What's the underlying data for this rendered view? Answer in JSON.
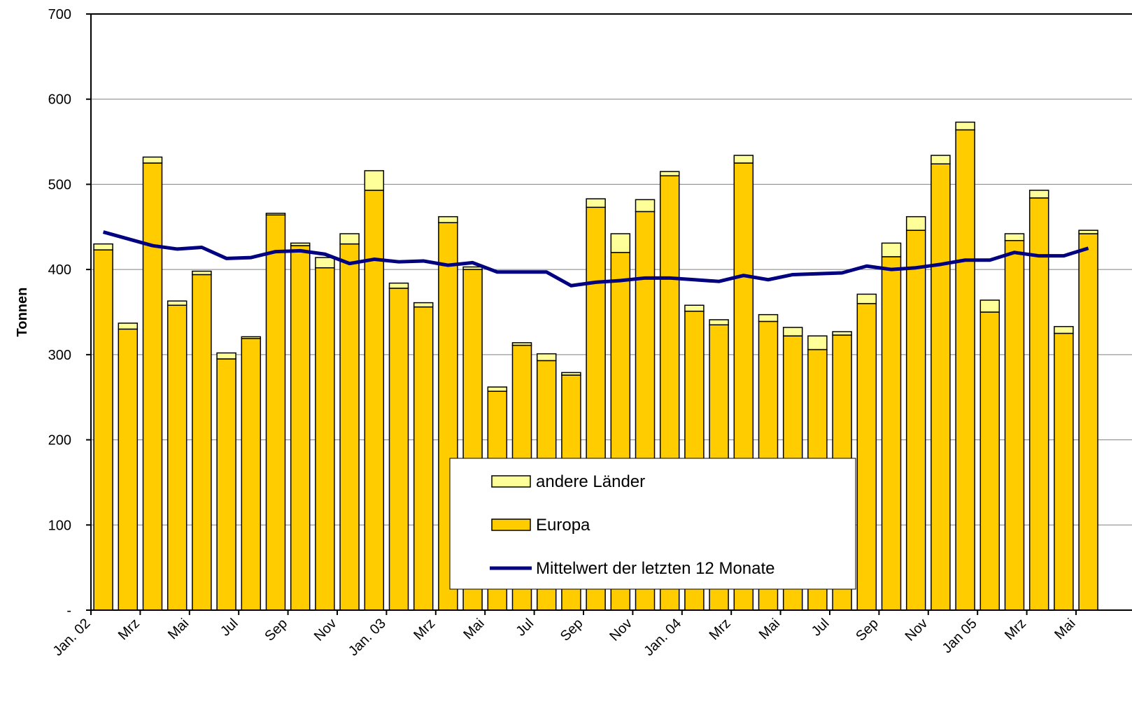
{
  "chart_data": {
    "type": "bar",
    "stacked": true,
    "y_label": "Tonnen",
    "categories": [
      "Jan. 02",
      null,
      "Mrz",
      null,
      "Mai",
      null,
      "Jul",
      null,
      "Sep",
      null,
      "Nov",
      null,
      "Jan. 03",
      null,
      "Mrz",
      null,
      "Mai",
      null,
      "Jul",
      null,
      "Sep",
      null,
      "Nov",
      null,
      "Jan. 04",
      null,
      "Mrz",
      null,
      "Mai",
      null,
      "Jul",
      null,
      "Sep",
      null,
      "Nov",
      null,
      "Jan 05",
      null,
      "Mrz",
      null,
      "Mai"
    ],
    "series": [
      {
        "name": "Europa",
        "color": "#ffcc00",
        "values": [
          423,
          330,
          525,
          358,
          394,
          295,
          319,
          464,
          428,
          402,
          430,
          493,
          378,
          356,
          455,
          400,
          257,
          311,
          293,
          276,
          473,
          420,
          468,
          510,
          351,
          335,
          525,
          339,
          322,
          306,
          323,
          360,
          415,
          446,
          524,
          564,
          350,
          434,
          484,
          325,
          442
        ]
      },
      {
        "name": "andere Länder",
        "color": "#ffff99",
        "values": [
          7,
          7,
          7,
          5,
          4,
          7,
          2,
          2,
          3,
          12,
          12,
          23,
          6,
          5,
          7,
          3,
          5,
          3,
          8,
          3,
          10,
          22,
          14,
          5,
          7,
          6,
          9,
          8,
          10,
          16,
          4,
          11,
          16,
          16,
          10,
          9,
          14,
          8,
          9,
          8,
          4
        ]
      },
      {
        "name": "Mittelwert der letzten 12 Monate",
        "type": "line",
        "color": "#000080",
        "values": [
          444,
          436,
          428,
          424,
          426,
          413,
          414,
          421,
          422,
          418,
          407,
          412,
          409,
          410,
          405,
          408,
          397,
          397,
          397,
          381,
          385,
          387,
          390,
          390,
          388,
          386,
          393,
          388,
          394,
          395,
          396,
          404,
          400,
          402,
          406,
          411,
          411,
          420,
          416,
          416,
          425
        ]
      }
    ],
    "ylim": [
      0,
      700
    ],
    "yticks": [
      {
        "value": 0,
        "label": "-"
      },
      100,
      200,
      300,
      400,
      500,
      600,
      700
    ],
    "grid": true,
    "legend": "bottom-center"
  }
}
